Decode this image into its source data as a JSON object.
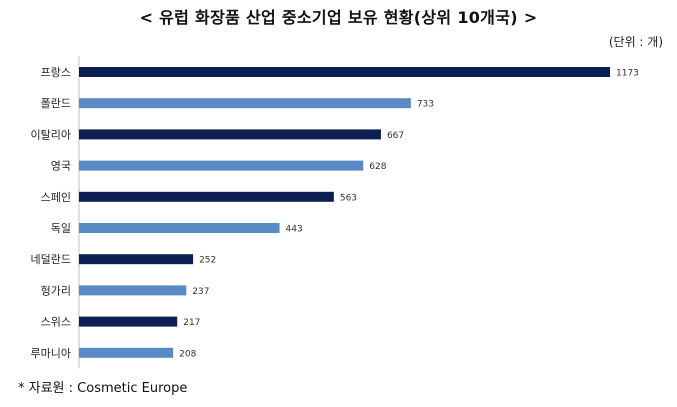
{
  "header": {
    "title": "< 유럽 화장품 산업 중소기업 보유 현황(상위 10개국) >",
    "unit": "(단위 : 개)"
  },
  "footer": {
    "source": "* 자료원 : Cosmetic Europe"
  },
  "colors": {
    "dark": "#0b1f52",
    "light": "#5a8ac6"
  },
  "chart_data": {
    "type": "bar",
    "orientation": "horizontal",
    "title": "< 유럽 화장품 산업 중소기업 보유 현황(상위 10개국) >",
    "unit_label": "(단위 : 개)",
    "categories": [
      "프랑스",
      "폴란드",
      "이탈리아",
      "영국",
      "스페인",
      "독일",
      "네덜란드",
      "헝가리",
      "스위스",
      "루마니아"
    ],
    "values": [
      1173,
      733,
      667,
      628,
      563,
      443,
      252,
      237,
      217,
      208
    ],
    "bar_colors": [
      "#0b1f52",
      "#5a8ac6",
      "#0b1f52",
      "#5a8ac6",
      "#0b1f52",
      "#5a8ac6",
      "#0b1f52",
      "#5a8ac6",
      "#0b1f52",
      "#5a8ac6"
    ],
    "xlim": [
      0,
      1173
    ],
    "grid": false,
    "legend": "none"
  }
}
